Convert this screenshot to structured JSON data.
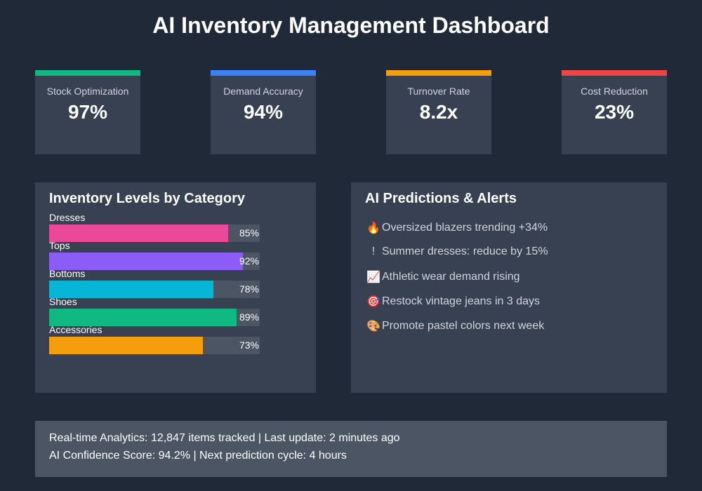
{
  "title": "AI Inventory Management Dashboard",
  "kpis": [
    {
      "label": "Stock Optimization",
      "value": "97%",
      "color": "#10b981"
    },
    {
      "label": "Demand Accuracy",
      "value": "94%",
      "color": "#3b82f6"
    },
    {
      "label": "Turnover Rate",
      "value": "8.2x",
      "color": "#f59e0b"
    },
    {
      "label": "Cost Reduction",
      "value": "23%",
      "color": "#ef4444"
    }
  ],
  "inventory_panel": {
    "title": "Inventory Levels by Category"
  },
  "alerts_panel": {
    "title": "AI Predictions & Alerts",
    "items": [
      {
        "icon": "fire-icon",
        "glyph": "🔥",
        "text": "Oversized blazers trending +34%"
      },
      {
        "icon": "exclamation-icon",
        "glyph": "!",
        "text": "Summer dresses: reduce by 15%"
      },
      {
        "icon": "trend-up-icon",
        "glyph": "📈",
        "text": "Athletic wear demand rising"
      },
      {
        "icon": "target-icon",
        "glyph": "🎯",
        "text": "Restock vintage jeans in 3 days"
      },
      {
        "icon": "paint-icon",
        "glyph": "🎨",
        "text": "Promote pastel colors next week"
      }
    ]
  },
  "footer": {
    "line1": "Real-time Analytics: 12,847 items tracked | Last update: 2 minutes ago",
    "line2": "AI Confidence Score: 94.2% | Next prediction cycle: 4 hours"
  },
  "chart_data": {
    "type": "bar",
    "orientation": "horizontal",
    "title": "Inventory Levels by Category",
    "categories": [
      "Dresses",
      "Tops",
      "Bottoms",
      "Shoes",
      "Accessories"
    ],
    "values": [
      85,
      92,
      78,
      89,
      73
    ],
    "value_labels": [
      "85%",
      "92%",
      "78%",
      "89%",
      "73%"
    ],
    "colors": [
      "#ec4899",
      "#8b5cf6",
      "#06b6d4",
      "#10b981",
      "#f59e0b"
    ],
    "unit": "%",
    "xlim": [
      0,
      100
    ],
    "grid": false
  }
}
